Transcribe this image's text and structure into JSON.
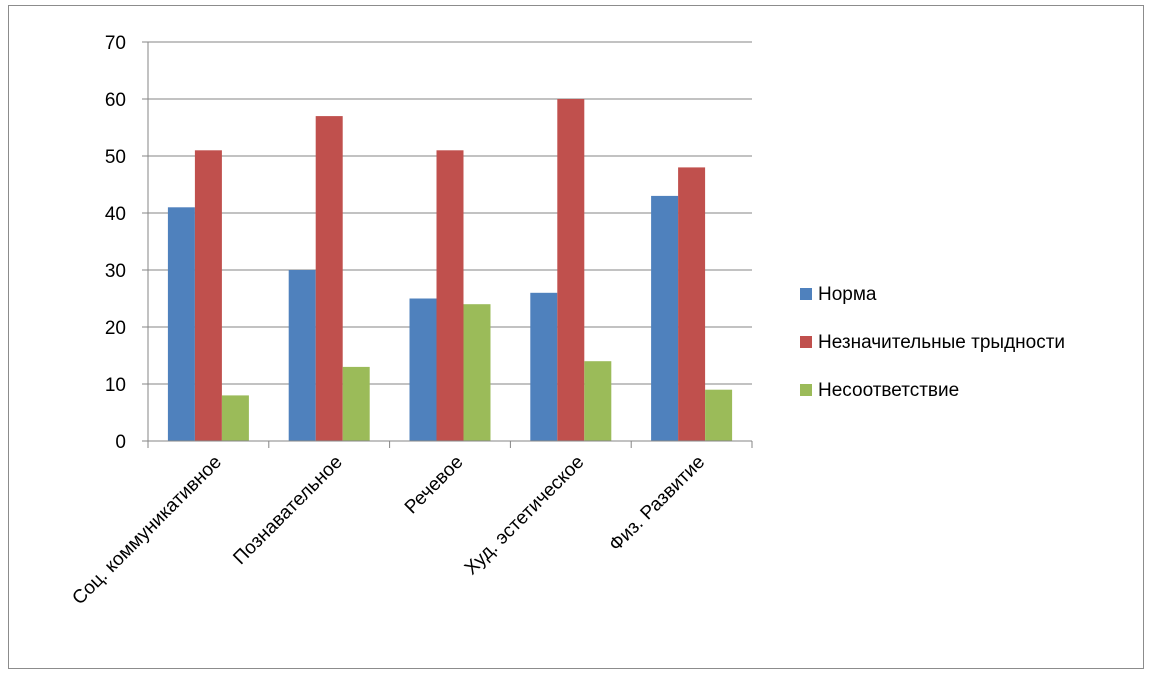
{
  "chart_data": {
    "type": "bar",
    "title": "",
    "xlabel": "",
    "ylabel": "",
    "categories": [
      "Соц. коммуникативное",
      "Познавательное",
      "Речевое",
      "Худ. эстетическое",
      "Физ. Развитие"
    ],
    "series": [
      {
        "name": "Норма",
        "color": "#4F81BD",
        "values": [
          41,
          30,
          25,
          26,
          43
        ]
      },
      {
        "name": "Незначительные трыдности",
        "color": "#C0504D",
        "values": [
          51,
          57,
          51,
          60,
          48
        ]
      },
      {
        "name": "Несоответствие",
        "color": "#9BBB59",
        "values": [
          8,
          13,
          24,
          14,
          9
        ]
      }
    ],
    "ylim": [
      0,
      70
    ],
    "yticks": [
      0,
      10,
      20,
      30,
      40,
      50,
      60,
      70
    ],
    "grid": true,
    "legend_position": "right"
  }
}
